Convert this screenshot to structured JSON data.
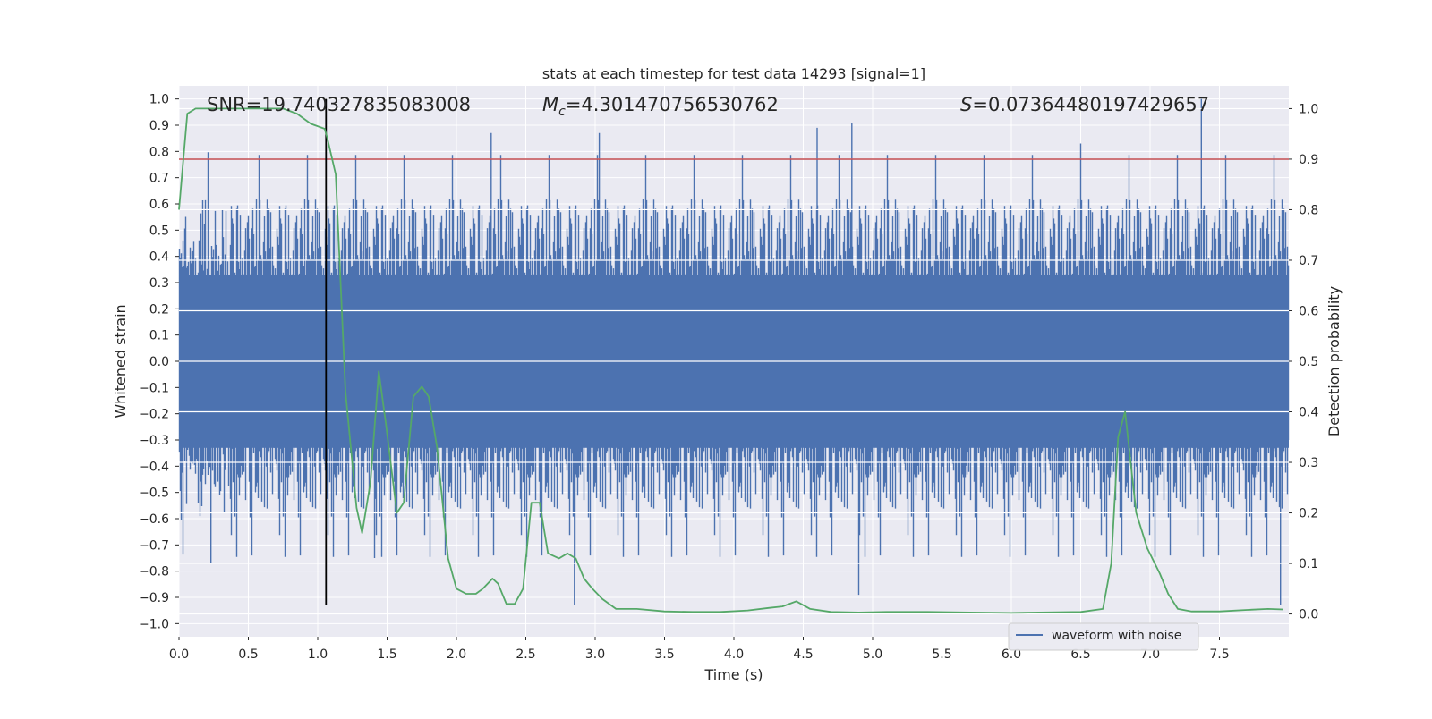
{
  "chart_data": {
    "type": "line",
    "title": "stats at each timestep for test data 14293 [signal=1]",
    "xlabel": "Time (s)",
    "ylabel_left": "Whitened strain",
    "ylabel_right": "Detection probability",
    "xlim": [
      0.0,
      8.0
    ],
    "ylim_left": [
      -1.05,
      1.05
    ],
    "ylim_right": [
      -0.045,
      1.045
    ],
    "x_ticks": [
      "0.0",
      "0.5",
      "1.0",
      "1.5",
      "2.0",
      "2.5",
      "3.0",
      "3.5",
      "4.0",
      "4.5",
      "5.0",
      "5.5",
      "6.0",
      "6.5",
      "7.0",
      "7.5"
    ],
    "y_left_ticks": [
      "1.0",
      "0.9",
      "0.8",
      "0.7",
      "0.6",
      "0.5",
      "0.4",
      "0.3",
      "0.2",
      "0.1",
      "0.0",
      "−0.1",
      "−0.2",
      "−0.3",
      "−0.4",
      "−0.5",
      "−0.6",
      "−0.7",
      "−0.8",
      "−0.9",
      "−1.0"
    ],
    "y_right_ticks": [
      "1.0",
      "0.9",
      "0.8",
      "0.7",
      "0.6",
      "0.5",
      "0.4",
      "0.3",
      "0.2",
      "0.1",
      "0.0"
    ],
    "grid": true,
    "legend_location": "lower right",
    "annotations": {
      "snr": "SNR=19.740327835083008",
      "mc_prefix": "M",
      "mc_sub": "c",
      "mc_value": "=4.301470756530762",
      "s_prefix": "S",
      "s_value": "=0.07364480197429657"
    },
    "threshold_line": {
      "y_right": 0.9,
      "color": "#c44e52"
    },
    "peak_marker": {
      "x": 1.06,
      "y_from": -0.93,
      "y_to": 1.0,
      "color": "#000000"
    },
    "series": [
      {
        "name": "waveform with noise",
        "color": "#4c72b0",
        "axis": "left",
        "description_stats": {
          "dense_band_abs": 0.35,
          "typical_max": 0.6,
          "spike_max": 1.0,
          "spike_min": -0.93
        },
        "notable_spikes": [
          {
            "x": 0.23,
            "y": -0.77
          },
          {
            "x": 1.41,
            "y": -0.75
          },
          {
            "x": 2.25,
            "y": 0.87
          },
          {
            "x": 2.85,
            "y": -0.93
          },
          {
            "x": 3.03,
            "y": 0.87
          },
          {
            "x": 4.6,
            "y": 0.89
          },
          {
            "x": 4.85,
            "y": 0.91
          },
          {
            "x": 4.9,
            "y": -0.89
          },
          {
            "x": 6.5,
            "y": 0.83
          },
          {
            "x": 7.37,
            "y": 1.0
          },
          {
            "x": 7.94,
            "y": -0.93
          }
        ]
      },
      {
        "name": "",
        "color": "#55a868",
        "axis": "right",
        "x": [
          0.0,
          0.06,
          0.12,
          0.25,
          0.5,
          0.75,
          0.85,
          0.95,
          1.05,
          1.07,
          1.13,
          1.2,
          1.28,
          1.32,
          1.38,
          1.44,
          1.49,
          1.57,
          1.62,
          1.69,
          1.75,
          1.8,
          1.86,
          1.94,
          2.0,
          2.07,
          2.14,
          2.19,
          2.26,
          2.3,
          2.36,
          2.42,
          2.48,
          2.54,
          2.6,
          2.66,
          2.74,
          2.8,
          2.86,
          2.92,
          2.98,
          3.05,
          3.15,
          3.3,
          3.5,
          3.7,
          3.9,
          4.1,
          4.25,
          4.35,
          4.45,
          4.55,
          4.7,
          4.9,
          5.1,
          5.4,
          5.7,
          6.0,
          6.2,
          6.5,
          6.66,
          6.72,
          6.77,
          6.82,
          6.9,
          6.98,
          7.07,
          7.13,
          7.2,
          7.3,
          7.5,
          7.7,
          7.85,
          7.96
        ],
        "y": [
          0.8,
          0.99,
          1.0,
          1.0,
          1.0,
          1.0,
          0.99,
          0.97,
          0.96,
          0.94,
          0.87,
          0.44,
          0.21,
          0.16,
          0.26,
          0.48,
          0.38,
          0.2,
          0.22,
          0.43,
          0.45,
          0.43,
          0.33,
          0.11,
          0.05,
          0.04,
          0.04,
          0.05,
          0.07,
          0.06,
          0.02,
          0.02,
          0.05,
          0.22,
          0.22,
          0.12,
          0.11,
          0.12,
          0.11,
          0.07,
          0.05,
          0.03,
          0.01,
          0.01,
          0.005,
          0.004,
          0.004,
          0.007,
          0.012,
          0.015,
          0.025,
          0.01,
          0.004,
          0.003,
          0.004,
          0.004,
          0.003,
          0.002,
          0.003,
          0.004,
          0.01,
          0.1,
          0.35,
          0.4,
          0.2,
          0.13,
          0.08,
          0.04,
          0.01,
          0.005,
          0.005,
          0.008,
          0.01,
          0.009
        ]
      }
    ]
  }
}
